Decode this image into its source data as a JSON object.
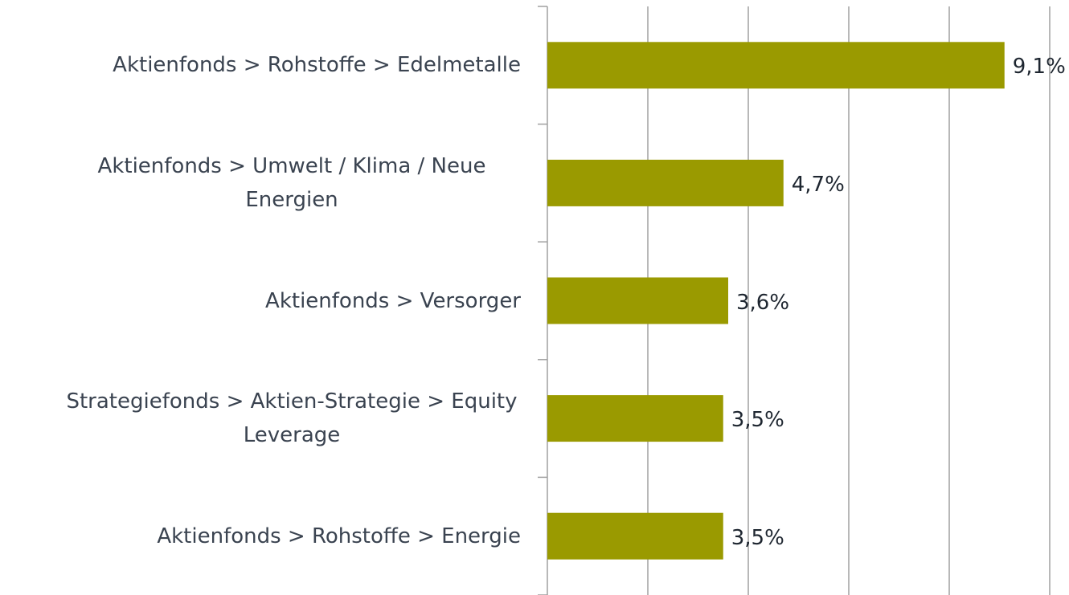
{
  "chart_data": {
    "type": "barh",
    "categories": [
      "Aktienfonds > Rohstoffe > Edelmetalle",
      "Aktienfonds > Umwelt / Klima / Neue Energien",
      "Aktienfonds > Versorger",
      "Strategiefonds > Aktien-Strategie > Equity Leverage",
      "Aktienfonds > Rohstoffe > Energie"
    ],
    "values": [
      9.1,
      4.7,
      3.6,
      3.5,
      3.5
    ],
    "value_labels": [
      "9,1%",
      "4,7%",
      "3,6%",
      "3,5%",
      "3,5%"
    ],
    "color": "#9a9a00",
    "xlim": [
      0,
      10
    ],
    "xticks": [
      0,
      2,
      4,
      6,
      8,
      10
    ],
    "grid": true
  }
}
